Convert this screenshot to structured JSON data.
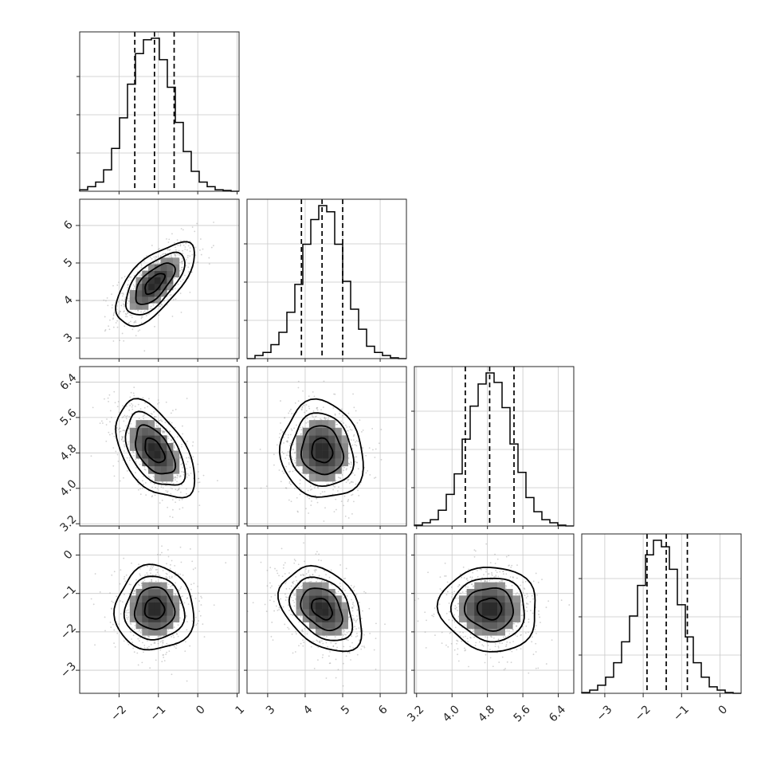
{
  "chart_data": {
    "type": "corner",
    "parameters": [
      {
        "index": 0,
        "range": [
          -3.0,
          1.05
        ],
        "mean": -1.1,
        "sd": 0.5,
        "quantiles": [
          -1.6,
          -1.1,
          -0.6
        ],
        "ticks": [
          {
            "value": -2,
            "label": "−2"
          },
          {
            "value": -1,
            "label": "−1"
          },
          {
            "value": 0,
            "label": "0"
          },
          {
            "value": 1,
            "label": "1"
          }
        ],
        "hist_bins": [
          0.01,
          0.03,
          0.06,
          0.14,
          0.28,
          0.48,
          0.7,
          0.9,
          0.99,
          1.0,
          0.86,
          0.68,
          0.45,
          0.26,
          0.13,
          0.06,
          0.03,
          0.01,
          0.005,
          0.0
        ]
      },
      {
        "index": 1,
        "range": [
          2.45,
          6.7
        ],
        "mean": 4.45,
        "sd": 0.55,
        "quantiles": [
          3.9,
          4.45,
          5.0
        ],
        "ticks": [
          {
            "value": 3,
            "label": "3"
          },
          {
            "value": 4,
            "label": "4"
          },
          {
            "value": 5,
            "label": "5"
          },
          {
            "value": 6,
            "label": "6"
          }
        ],
        "hist_bins": [
          0.0,
          0.02,
          0.04,
          0.09,
          0.17,
          0.3,
          0.48,
          0.74,
          0.9,
          0.99,
          0.95,
          0.74,
          0.5,
          0.32,
          0.19,
          0.08,
          0.04,
          0.02,
          0.005,
          0.0
        ]
      },
      {
        "index": 2,
        "range": [
          3.15,
          6.75
        ],
        "mean": 4.85,
        "sd": 0.55,
        "quantiles": [
          4.3,
          4.85,
          5.4
        ],
        "ticks": [
          {
            "value": 3.2,
            "label": "3.2"
          },
          {
            "value": 4.0,
            "label": "4.0"
          },
          {
            "value": 4.8,
            "label": "4.8"
          },
          {
            "value": 5.6,
            "label": "5.6"
          },
          {
            "value": 6.4,
            "label": "6.4"
          }
        ],
        "hist_bins": [
          0.005,
          0.02,
          0.04,
          0.1,
          0.2,
          0.33,
          0.55,
          0.76,
          0.9,
          0.97,
          0.91,
          0.75,
          0.52,
          0.34,
          0.18,
          0.09,
          0.04,
          0.02,
          0.005,
          0.0
        ]
      },
      {
        "index": 3,
        "range": [
          -3.6,
          0.55
        ],
        "mean": -1.4,
        "sd": 0.55,
        "quantiles": [
          -1.9,
          -1.4,
          -0.85
        ],
        "ticks": [
          {
            "value": -3,
            "label": "−3"
          },
          {
            "value": -2,
            "label": "−2"
          },
          {
            "value": -1,
            "label": "−1"
          },
          {
            "value": 0,
            "label": "0"
          }
        ],
        "hist_bins": [
          0.005,
          0.02,
          0.05,
          0.1,
          0.19,
          0.32,
          0.48,
          0.67,
          0.86,
          0.95,
          0.91,
          0.77,
          0.55,
          0.35,
          0.19,
          0.1,
          0.04,
          0.02,
          0.005,
          0.0
        ]
      }
    ],
    "correlations": [
      {
        "row": 1,
        "col": 0,
        "r": 0.65
      },
      {
        "row": 2,
        "col": 0,
        "r": -0.5
      },
      {
        "row": 2,
        "col": 1,
        "r": -0.1
      },
      {
        "row": 3,
        "col": 0,
        "r": 0.0
      },
      {
        "row": 3,
        "col": 1,
        "r": -0.35
      },
      {
        "row": 3,
        "col": 2,
        "r": -0.05
      }
    ],
    "contour_levels_sigma": [
      0.5,
      1.0,
      1.5,
      2.0
    ],
    "grid": true,
    "tick_label_rotation_deg": 45
  }
}
